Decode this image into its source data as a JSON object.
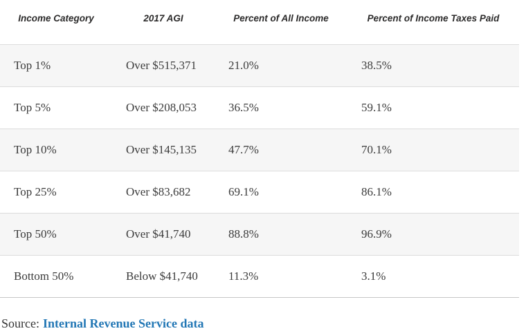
{
  "chart_data": {
    "type": "table",
    "columns": [
      "Income Category",
      "2017 AGI",
      "Percent of All Income",
      "Percent of Income Taxes Paid"
    ],
    "rows": [
      [
        "Top 1%",
        "Over $515,371",
        "21.0%",
        "38.5%"
      ],
      [
        "Top 5%",
        "Over $208,053",
        "36.5%",
        "59.1%"
      ],
      [
        "Top 10%",
        "Over $145,135",
        "47.7%",
        "70.1%"
      ],
      [
        "Top 25%",
        "Over $83,682",
        "69.1%",
        "86.1%"
      ],
      [
        "Top 50%",
        "Over $41,740",
        "88.8%",
        "96.9%"
      ],
      [
        "Bottom 50%",
        "Below $41,740",
        "11.3%",
        "3.1%"
      ]
    ],
    "layout": {
      "row_striping": "odd rows shaded",
      "header_style": "bold italic sans-serif, centered",
      "body_style": "serif, left-aligned"
    }
  },
  "source": {
    "prefix": "Source:",
    "link_label": "Internal Revenue Service data"
  },
  "colors": {
    "row_stripe": "#f6f6f6",
    "divider": "#dcdcdc",
    "table_bottom_border": "#c6c6c6",
    "header_text": "#2b2a2a",
    "body_text": "#3b3b3b",
    "link_blue": "#2277b5"
  }
}
